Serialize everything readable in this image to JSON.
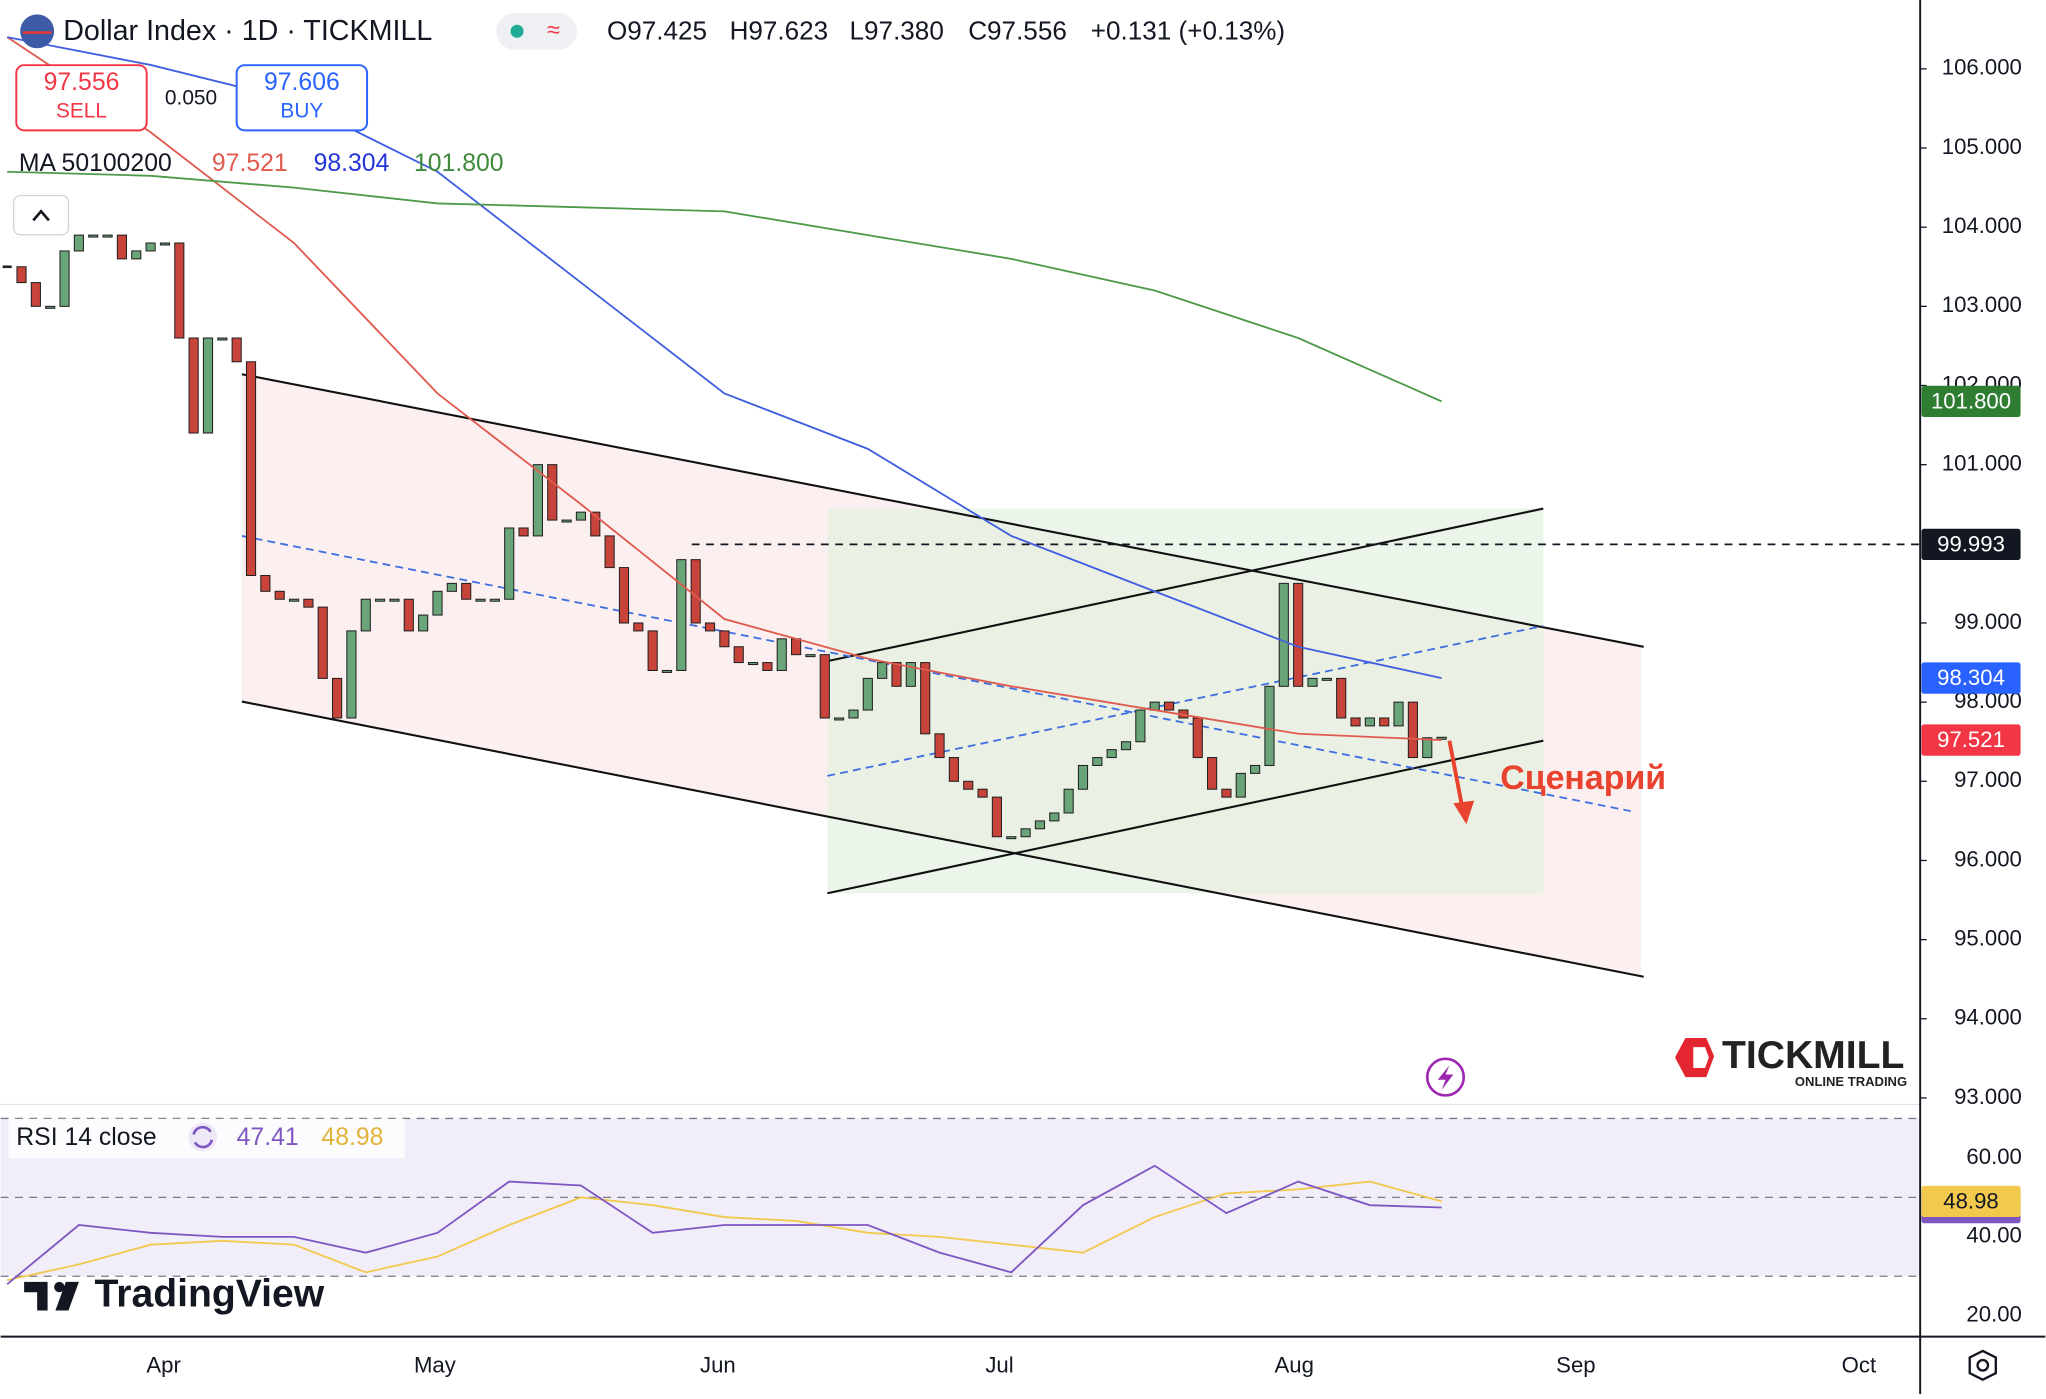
{
  "header": {
    "title": "Dollar Index · 1D · TICKMILL",
    "ohlc": [
      "O97.425",
      "H97.623",
      "L97.380",
      "C97.556",
      "+0.131 (+0.13%)"
    ],
    "sell_price": "97.556",
    "sell_label": "SELL",
    "spread": "0.050",
    "buy_price": "97.606",
    "buy_label": "BUY",
    "ma_title": "MA 50100200"
  },
  "annotation": "Сценарий",
  "branding": {
    "broker": "TICKMILL",
    "broker_tagline": "ONLINE TRADING",
    "platform": "TradingView"
  },
  "chart_data": {
    "type": "candlestick",
    "ylim": [
      92.95,
      106.87
    ],
    "yticks": [
      {
        "value": 106,
        "label": "106.000"
      },
      {
        "value": 105,
        "label": "105.000"
      },
      {
        "value": 104,
        "label": "104.000"
      },
      {
        "value": 103,
        "label": "103.000"
      },
      {
        "value": 102,
        "label": "102.000"
      },
      {
        "value": 101,
        "label": "101.000"
      },
      {
        "value": 99,
        "label": "99.000"
      },
      {
        "value": 98,
        "label": "98.000"
      },
      {
        "value": 97,
        "label": "97.000"
      },
      {
        "value": 96,
        "label": "96.000"
      },
      {
        "value": 95,
        "label": "95.000"
      },
      {
        "value": 94,
        "label": "94.000"
      },
      {
        "value": 93,
        "label": "93.000"
      }
    ],
    "closes": [
      103.5,
      103.3,
      103.0,
      103.0,
      103.7,
      103.9,
      103.9,
      103.9,
      103.6,
      103.7,
      103.8,
      103.8,
      102.6,
      101.4,
      102.6,
      102.6,
      102.3,
      99.6,
      99.4,
      99.3,
      99.3,
      99.2,
      98.3,
      97.8,
      98.9,
      99.3,
      99.3,
      99.3,
      98.9,
      99.1,
      99.4,
      99.5,
      99.3,
      99.3,
      99.3,
      100.2,
      100.1,
      101.0,
      100.3,
      100.3,
      100.4,
      100.1,
      99.7,
      99.0,
      98.9,
      98.4,
      98.4,
      99.8,
      99.0,
      98.9,
      98.7,
      98.5,
      98.5,
      98.4,
      98.8,
      98.6,
      98.6,
      97.8,
      97.8,
      97.9,
      98.3,
      98.5,
      98.2,
      98.5,
      97.6,
      97.3,
      97.0,
      96.9,
      96.8,
      96.3,
      96.3,
      96.4,
      96.5,
      96.6,
      96.9,
      97.2,
      97.3,
      97.4,
      97.5,
      97.9,
      98.0,
      97.9,
      97.8,
      97.3,
      96.9,
      96.8,
      97.1,
      97.2,
      98.2,
      99.5,
      98.2,
      98.3,
      98.3,
      97.8,
      97.7,
      97.8,
      97.7,
      98.0,
      97.3,
      97.55,
      97.556
    ],
    "up_color": "#6aa57a",
    "down_color": "#c8443a",
    "ma_x": [
      0,
      10,
      20,
      30,
      40,
      50,
      60,
      70,
      80,
      90,
      100
    ],
    "series": [
      {
        "color": "#e05a4e",
        "label": "97.521",
        "values": [
          106.4,
          105.2,
          103.8,
          101.9,
          100.5,
          99.05,
          98.55,
          98.2,
          97.9,
          97.6,
          97.521
        ]
      },
      {
        "color": "#3f5ee0",
        "label": "98.304",
        "values": [
          106.4,
          106.05,
          105.6,
          104.7,
          103.3,
          101.9,
          101.2,
          100.1,
          99.4,
          98.7,
          98.304
        ]
      },
      {
        "color": "#4f9a4a",
        "label": "101.800",
        "values": [
          104.7,
          104.65,
          104.5,
          104.3,
          104.25,
          104.2,
          103.9,
          103.6,
          103.2,
          102.6,
          101.8
        ]
      }
    ],
    "levels": [
      {
        "value": 99.993,
        "label": "99.993"
      }
    ],
    "x_labels": [
      "Apr",
      "May",
      "Jun",
      "Jul",
      "Aug",
      "Sep",
      "Oct"
    ]
  },
  "rsi": {
    "title": "RSI 14 close",
    "ylim": [
      14.7,
      73.2
    ],
    "yticks": [
      {
        "value": 20,
        "label": "20.00"
      },
      {
        "value": 40,
        "label": "40.00"
      },
      {
        "value": 60,
        "label": "60.00"
      }
    ],
    "levels": [
      30,
      50,
      70
    ],
    "x": [
      0,
      5,
      10,
      15,
      20,
      25,
      30,
      35,
      40,
      45,
      50,
      55,
      60,
      65,
      70,
      75,
      80,
      85,
      90,
      95,
      100
    ],
    "series": [
      {
        "color": "#7e57c2",
        "label": "47.41",
        "values": [
          28,
          43,
          41,
          40,
          40,
          36,
          41,
          54,
          53,
          41,
          43,
          43,
          43,
          36,
          31,
          48,
          58,
          46,
          54,
          48,
          47.41
        ]
      },
      {
        "color": "#f2c94c",
        "label": "48.98",
        "values": [
          29,
          33,
          38,
          39,
          38,
          31,
          35,
          43,
          50,
          48,
          45,
          44,
          41,
          40,
          38,
          36,
          45,
          51,
          52,
          54,
          48.98
        ]
      }
    ]
  }
}
